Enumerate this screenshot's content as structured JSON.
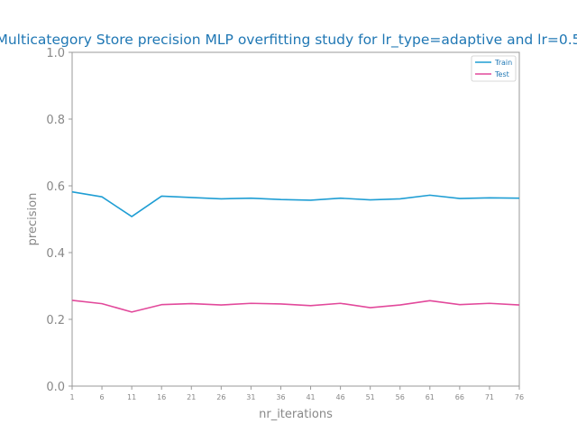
{
  "chart_data": {
    "type": "line",
    "title": "Multicategory Store precision MLP overfitting study for lr_type=adaptive and lr=0.5",
    "xlabel": "nr_iterations",
    "ylabel": "precision",
    "x": [
      1,
      6,
      11,
      16,
      21,
      26,
      31,
      36,
      41,
      46,
      51,
      56,
      61,
      66,
      71,
      76
    ],
    "xtick_labels": [
      "1",
      "6",
      "11",
      "16",
      "21",
      "26",
      "31",
      "36",
      "41",
      "46",
      "51",
      "56",
      "61",
      "66",
      "71",
      "76"
    ],
    "xlim": [
      1,
      76
    ],
    "ylim": [
      0.0,
      1.0
    ],
    "ytick_values": [
      0.0,
      0.2,
      0.4,
      0.6,
      0.8,
      1.0
    ],
    "ytick_labels": [
      "0.0",
      "0.2",
      "0.4",
      "0.6",
      "0.8",
      "1.0"
    ],
    "grid": false,
    "legend_position": "top-right",
    "series": [
      {
        "name": "Train",
        "color": "#1f9ed4",
        "values": [
          0.582,
          0.567,
          0.508,
          0.569,
          0.565,
          0.561,
          0.563,
          0.559,
          0.557,
          0.563,
          0.558,
          0.561,
          0.572,
          0.562,
          0.564,
          0.563
        ]
      },
      {
        "name": "Test",
        "color": "#e2499b",
        "values": [
          0.257,
          0.247,
          0.222,
          0.244,
          0.247,
          0.243,
          0.248,
          0.246,
          0.241,
          0.248,
          0.235,
          0.243,
          0.256,
          0.244,
          0.248,
          0.243
        ]
      }
    ]
  }
}
